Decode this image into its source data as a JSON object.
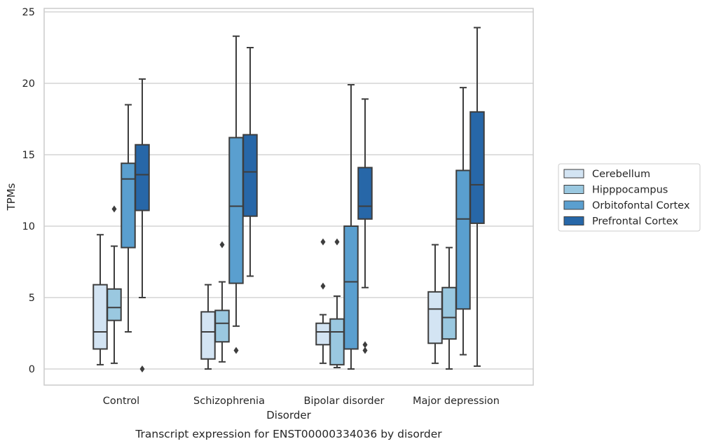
{
  "chart_data": {
    "type": "box",
    "title": "",
    "caption": "Transcript expression for ENST00000334036 by disorder",
    "xlabel": "Disorder",
    "ylabel": "TPMs",
    "ylim": [
      -1.1,
      25.3
    ],
    "yticks": [
      0,
      5,
      10,
      15,
      20,
      25
    ],
    "grid": "horizontal",
    "legend_position": "right",
    "categories": [
      "Control",
      "Schizophrenia",
      "Bipolar disorder",
      "Major depression"
    ],
    "series": [
      {
        "name": "Cerebellum",
        "color": "#d3e4f3",
        "boxes": [
          {
            "whisker_low": 0.3,
            "q1": 1.4,
            "median": 2.6,
            "q3": 5.9,
            "whisker_high": 9.4,
            "outliers": []
          },
          {
            "whisker_low": 0.0,
            "q1": 0.7,
            "median": 2.6,
            "q3": 4.0,
            "whisker_high": 5.9,
            "outliers": []
          },
          {
            "whisker_low": 0.4,
            "q1": 1.7,
            "median": 2.6,
            "q3": 3.2,
            "whisker_high": 3.8,
            "outliers": [
              5.8,
              8.9
            ]
          },
          {
            "whisker_low": 0.4,
            "q1": 1.8,
            "median": 4.2,
            "q3": 5.4,
            "whisker_high": 8.7,
            "outliers": []
          }
        ]
      },
      {
        "name": "Hipppocampus",
        "color": "#9ac8e0",
        "boxes": [
          {
            "whisker_low": 0.4,
            "q1": 3.4,
            "median": 4.3,
            "q3": 5.6,
            "whisker_high": 8.6,
            "outliers": [
              11.2
            ]
          },
          {
            "whisker_low": 0.5,
            "q1": 1.9,
            "median": 3.2,
            "q3": 4.1,
            "whisker_high": 6.1,
            "outliers": [
              8.7
            ]
          },
          {
            "whisker_low": 0.1,
            "q1": 0.3,
            "median": 2.6,
            "q3": 3.5,
            "whisker_high": 5.1,
            "outliers": [
              8.9
            ]
          },
          {
            "whisker_low": 0.0,
            "q1": 2.1,
            "median": 3.6,
            "q3": 5.7,
            "whisker_high": 8.5,
            "outliers": []
          }
        ]
      },
      {
        "name": "Orbitofontal Cortex",
        "color": "#5a9fcf",
        "boxes": [
          {
            "whisker_low": 2.6,
            "q1": 8.5,
            "median": 13.3,
            "q3": 14.4,
            "whisker_high": 18.5,
            "outliers": []
          },
          {
            "whisker_low": 3.0,
            "q1": 6.0,
            "median": 11.4,
            "q3": 16.2,
            "whisker_high": 23.3,
            "outliers": [
              1.3
            ]
          },
          {
            "whisker_low": 0.0,
            "q1": 1.4,
            "median": 6.1,
            "q3": 10.0,
            "whisker_high": 19.9,
            "outliers": []
          },
          {
            "whisker_low": 1.0,
            "q1": 4.2,
            "median": 10.5,
            "q3": 13.9,
            "whisker_high": 19.7,
            "outliers": []
          }
        ]
      },
      {
        "name": "Prefrontal Cortex",
        "color": "#2767a8",
        "boxes": [
          {
            "whisker_low": 5.0,
            "q1": 11.1,
            "median": 13.6,
            "q3": 15.7,
            "whisker_high": 20.3,
            "outliers": [
              0.0
            ]
          },
          {
            "whisker_low": 6.5,
            "q1": 10.7,
            "median": 13.8,
            "q3": 16.4,
            "whisker_high": 22.5,
            "outliers": []
          },
          {
            "whisker_low": 5.7,
            "q1": 10.5,
            "median": 11.4,
            "q3": 14.1,
            "whisker_high": 18.9,
            "outliers": [
              1.3,
              1.7
            ]
          },
          {
            "whisker_low": 0.2,
            "q1": 10.2,
            "median": 12.9,
            "q3": 18.0,
            "whisker_high": 23.9,
            "outliers": []
          }
        ]
      }
    ]
  }
}
